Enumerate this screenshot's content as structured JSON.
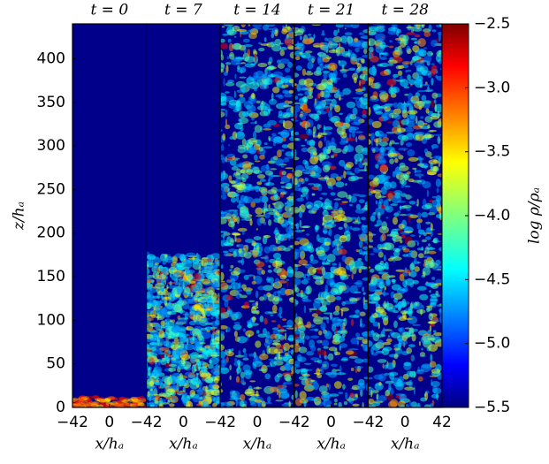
{
  "chart_data": {
    "type": "heatmap",
    "ylabel": "z/hₐ",
    "xlabel": "x/hₐ",
    "ylim": [
      0,
      440
    ],
    "yticks": [
      0,
      50,
      100,
      150,
      200,
      250,
      300,
      350,
      400
    ],
    "xlim": [
      -42,
      42
    ],
    "panels": [
      {
        "title": "t = 0",
        "xticks": [
          {
            "value": -42,
            "label": "−42"
          },
          0
        ]
      },
      {
        "title": "t = 7",
        "xticks": [
          {
            "value": -42,
            "label": "−42"
          },
          0
        ]
      },
      {
        "title": "t = 14",
        "xticks": [
          {
            "value": -42,
            "label": "−42"
          },
          0
        ]
      },
      {
        "title": "t = 21",
        "xticks": [
          {
            "value": -42,
            "label": "−42"
          },
          0
        ]
      },
      {
        "title": "t = 28",
        "xticks": [
          {
            "value": -42,
            "label": "−42"
          },
          0,
          42
        ]
      }
    ],
    "colorbar": {
      "label": "log ρ/ρₐ",
      "clim": [
        -5.5,
        -2.5
      ],
      "ticks": [
        {
          "value": -5.5,
          "label": "−5.5"
        },
        {
          "value": -5.0,
          "label": "−5.0"
        },
        {
          "value": -4.5,
          "label": "−4.5"
        },
        {
          "value": -4.0,
          "label": "−4.0"
        },
        {
          "value": -3.5,
          "label": "−3.5"
        },
        {
          "value": -3.0,
          "label": "−3.0"
        },
        {
          "value": -2.5,
          "label": "−2.5"
        }
      ]
    }
  }
}
